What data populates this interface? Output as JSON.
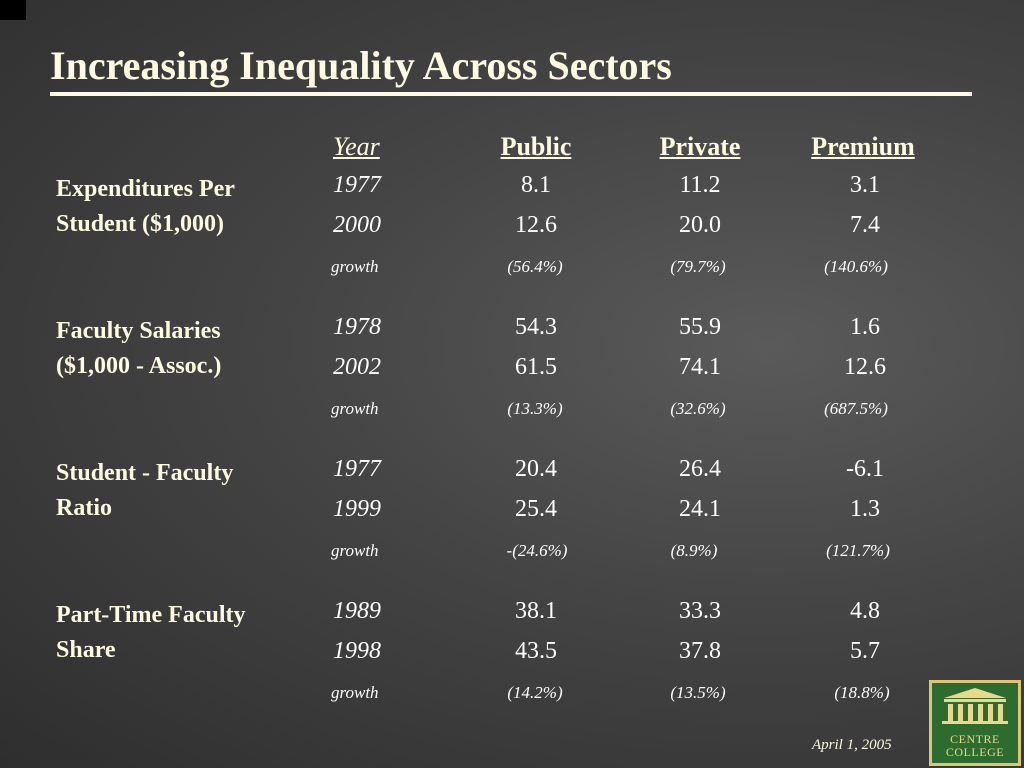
{
  "title": "Increasing Inequality Across Sectors",
  "headers": {
    "year": "Year",
    "public": "Public",
    "private": "Private",
    "premium": "Premium"
  },
  "sections": [
    {
      "label_line1": "Expenditures Per",
      "label_line2": "Student ($1,000)",
      "rows": [
        {
          "year": "1977",
          "public": "8.1",
          "private": "11.2",
          "premium": "3.1"
        },
        {
          "year": "2000",
          "public": "12.6",
          "private": "20.0",
          "premium": "7.4"
        }
      ],
      "growth": {
        "label": "growth",
        "public": "(56.4%)",
        "private": "(79.7%)",
        "premium": "(140.6%)"
      }
    },
    {
      "label_line1": "Faculty Salaries",
      "label_line2": "($1,000 - Assoc.)",
      "rows": [
        {
          "year": "1978",
          "public": "54.3",
          "private": "55.9",
          "premium": "1.6"
        },
        {
          "year": "2002",
          "public": "61.5",
          "private": "74.1",
          "premium": "12.6"
        }
      ],
      "growth": {
        "label": "growth",
        "public": "(13.3%)",
        "private": "(32.6%)",
        "premium": "(687.5%)"
      }
    },
    {
      "label_line1": "Student - Faculty",
      "label_line2": "Ratio",
      "rows": [
        {
          "year": "1977",
          "public": "20.4",
          "private": "26.4",
          "premium": "-6.1"
        },
        {
          "year": "1999",
          "public": "25.4",
          "private": "24.1",
          "premium": "1.3"
        }
      ],
      "growth": {
        "label": "growth",
        "public": "-(24.6%)",
        "private": "(8.9%)",
        "premium": "(121.7%)"
      }
    },
    {
      "label_line1": "Part-Time Faculty",
      "label_line2": "Share",
      "rows": [
        {
          "year": "1989",
          "public": "38.1",
          "private": "33.3",
          "premium": "4.8"
        },
        {
          "year": "1998",
          "public": "43.5",
          "private": "37.8",
          "premium": "5.7"
        }
      ],
      "growth": {
        "label": "growth",
        "public": "(14.2%)",
        "private": "(13.5%)",
        "premium": "(18.8%)"
      }
    }
  ],
  "date": "April 1, 2005",
  "logo": {
    "line1": "CENTRE",
    "line2": "COLLEGE",
    "icon": "college-building-icon"
  },
  "colors": {
    "title": "#fffbe0",
    "logo_bg": "#2e6b2e",
    "logo_accent": "#d8c77a"
  }
}
